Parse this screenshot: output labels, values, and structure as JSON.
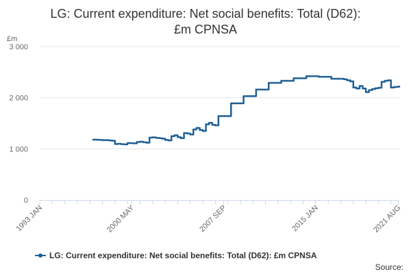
{
  "title_line1": "LG: Current expenditure: Net social benefits: Total (D62):",
  "title_line2": "£m CPNSA",
  "y_unit": "£m",
  "legend_label": "LG: Current expenditure: Net social benefits: Total (D62): £m CPNSA",
  "source_label": "Source:",
  "colors": {
    "series": "#206095",
    "grid": "#e6e6e6",
    "axis": "#ccd6eb"
  },
  "chart_data": {
    "type": "line",
    "title": "LG: Current expenditure: Net social benefits: Total (D62): £m CPNSA",
    "xlabel": "",
    "ylabel": "£m",
    "ylim": [
      0,
      3000
    ],
    "y_ticks": [
      0,
      1000,
      2000,
      3000
    ],
    "y_tick_labels": [
      "0",
      "1 000",
      "2 000",
      "3 000"
    ],
    "x_range": [
      1993.0,
      2021.67
    ],
    "x_ticks": [
      1993.0,
      2000.33,
      2007.67,
      2015.0,
      2021.58
    ],
    "x_tick_labels": [
      "1993 JAN",
      "2000 MAY",
      "2007 SEP",
      "2015 JAN",
      "2021 AUG"
    ],
    "series": [
      {
        "name": "LG: Current expenditure: Net social benefits: Total (D62): £m CPNSA",
        "x": [
          1997.25,
          1997.5,
          1997.75,
          1998.0,
          1998.25,
          1998.5,
          1998.75,
          1999.0,
          1999.25,
          1999.5,
          1999.75,
          2000.0,
          2000.25,
          2000.5,
          2000.75,
          2001.0,
          2001.25,
          2001.5,
          2001.75,
          2002.0,
          2002.25,
          2002.5,
          2002.75,
          2003.0,
          2003.25,
          2003.5,
          2003.75,
          2004.0,
          2004.25,
          2004.5,
          2004.75,
          2005.0,
          2005.25,
          2005.5,
          2005.75,
          2006.0,
          2006.25,
          2006.5,
          2006.75,
          2007.0,
          2007.25,
          2007.5,
          2007.75,
          2008.0,
          2008.25,
          2008.5,
          2008.75,
          2009.0,
          2009.25,
          2009.5,
          2009.75,
          2010.0,
          2010.25,
          2010.5,
          2010.75,
          2011.0,
          2011.25,
          2011.5,
          2011.75,
          2012.0,
          2012.25,
          2012.5,
          2012.75,
          2013.0,
          2013.25,
          2013.5,
          2013.75,
          2014.0,
          2014.25,
          2014.5,
          2014.75,
          2015.0,
          2015.25,
          2015.5,
          2015.75,
          2016.0,
          2016.25,
          2016.5,
          2016.75,
          2017.0,
          2017.25,
          2017.5,
          2017.75,
          2018.0,
          2018.25,
          2018.5,
          2018.75,
          2019.0,
          2019.25,
          2019.5,
          2019.75,
          2020.0,
          2020.25,
          2020.5,
          2020.75,
          2021.0,
          2021.25,
          2021.5,
          2021.67
        ],
        "values": [
          1180,
          1178,
          1175,
          1170,
          1172,
          1165,
          1160,
          1095,
          1100,
          1092,
          1088,
          1115,
          1112,
          1108,
          1135,
          1140,
          1130,
          1120,
          1220,
          1225,
          1215,
          1210,
          1200,
          1175,
          1165,
          1250,
          1265,
          1230,
          1210,
          1310,
          1300,
          1280,
          1380,
          1410,
          1370,
          1350,
          1480,
          1510,
          1470,
          1460,
          1640,
          1640,
          1640,
          1640,
          1890,
          1890,
          1890,
          1890,
          2030,
          2030,
          2030,
          2030,
          2160,
          2160,
          2160,
          2160,
          2290,
          2290,
          2290,
          2290,
          2330,
          2330,
          2330,
          2330,
          2380,
          2380,
          2380,
          2380,
          2420,
          2420,
          2420,
          2420,
          2410,
          2410,
          2410,
          2410,
          2370,
          2370,
          2370,
          2370,
          2360,
          2340,
          2320,
          2200,
          2180,
          2230,
          2180,
          2110,
          2150,
          2170,
          2185,
          2195,
          2310,
          2330,
          2340,
          2200,
          2210,
          2215,
          2220
        ]
      }
    ]
  }
}
